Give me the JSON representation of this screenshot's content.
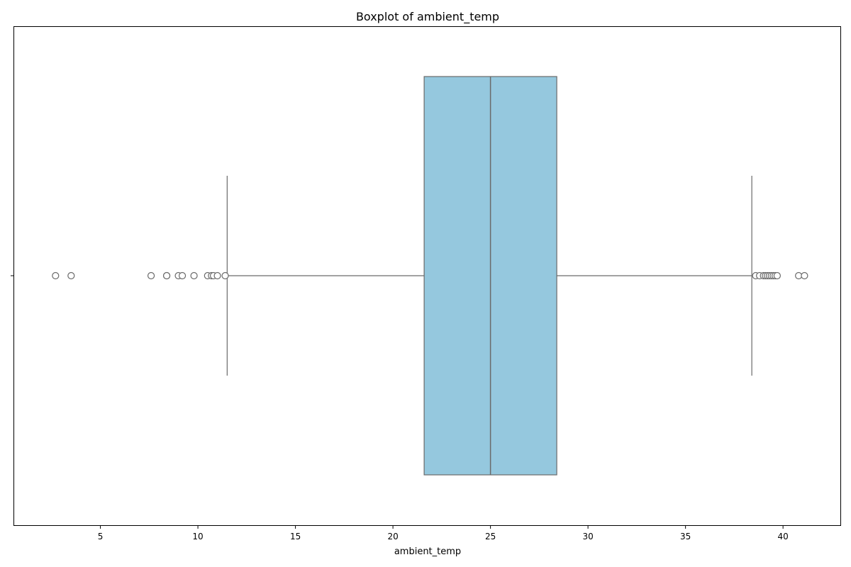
{
  "chart_data": {
    "type": "boxplot",
    "title": "Boxplot of ambient_temp",
    "xlabel": "ambient_temp",
    "ylabel": "",
    "orientation": "horizontal",
    "xlim": [
      0.58,
      42.94
    ],
    "xticks": [
      5,
      10,
      15,
      20,
      25,
      30,
      35,
      40
    ],
    "xtick_labels": [
      "5",
      "10",
      "15",
      "20",
      "25",
      "30",
      "35",
      "40"
    ],
    "grid": false,
    "legend": "none",
    "box": {
      "whisker_low": 11.5,
      "q1": 21.6,
      "median": 25.0,
      "q3": 28.4,
      "whisker_high": 38.4,
      "fill": "#95c8de",
      "line": "#6a6a6a"
    },
    "outliers": [
      2.7,
      3.5,
      7.6,
      8.4,
      8.4,
      9.0,
      9.2,
      9.8,
      10.5,
      10.7,
      10.8,
      11.0,
      11.4,
      38.6,
      38.8,
      39.0,
      39.1,
      39.2,
      39.3,
      39.4,
      39.5,
      39.6,
      39.7,
      40.8,
      41.1
    ],
    "colors": {
      "axis": "#000000",
      "outlier_stroke": "#6a6a6a",
      "outlier_fill": "#ffffff",
      "background": "#ffffff"
    }
  }
}
